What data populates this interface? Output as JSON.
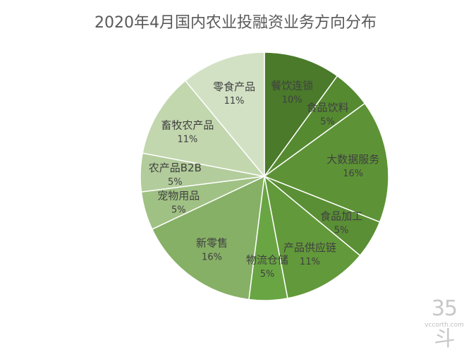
{
  "chart_data": {
    "type": "pie",
    "title": "2020年4月国内农业投融资业务方向分布",
    "slices": [
      {
        "label": "餐饮连锁",
        "value": 10,
        "pct_label": "10%",
        "color": "#4a7a2a"
      },
      {
        "label": "食品饮料",
        "value": 5,
        "pct_label": "5%",
        "color": "#558a31"
      },
      {
        "label": "大数据服务",
        "value": 16,
        "pct_label": "16%",
        "color": "#5d9336"
      },
      {
        "label": "食品加工",
        "value": 5,
        "pct_label": "5%",
        "color": "#5a8f35"
      },
      {
        "label": "产品供应链",
        "value": 11,
        "pct_label": "11%",
        "color": "#62993a"
      },
      {
        "label": "物流仓储",
        "value": 5,
        "pct_label": "5%",
        "color": "#6aa544"
      },
      {
        "label": "新零售",
        "value": 16,
        "pct_label": "16%",
        "color": "#86b066"
      },
      {
        "label": "宠物用品",
        "value": 5,
        "pct_label": "5%",
        "color": "#a0c184"
      },
      {
        "label": "农产品B2B",
        "value": 5,
        "pct_label": "5%",
        "color": "#b2cc9b"
      },
      {
        "label": "畜牧农产品",
        "value": 11,
        "pct_label": "11%",
        "color": "#c2d7ae"
      },
      {
        "label": "零食产品",
        "value": 11,
        "pct_label": "11%",
        "color": "#d2e1c4"
      }
    ]
  },
  "watermark": {
    "main": "35斗",
    "sub": "vccorth.com"
  }
}
